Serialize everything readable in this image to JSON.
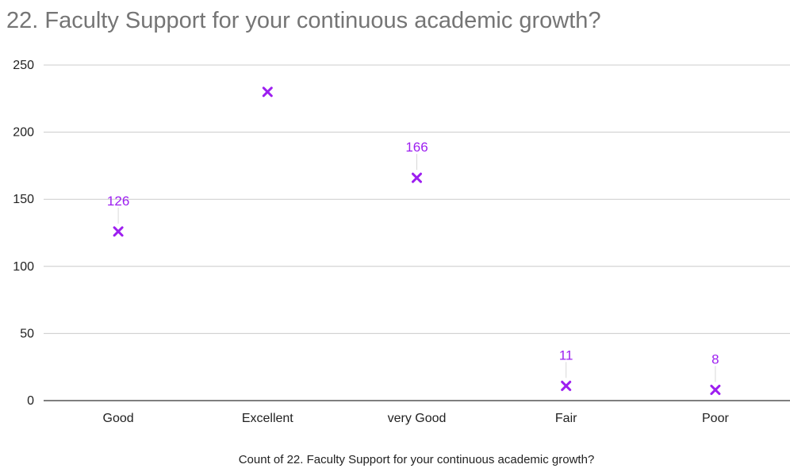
{
  "chart_data": {
    "type": "scatter",
    "title": "22. Faculty Support for your continuous academic growth?",
    "xlabel": "Count of 22. Faculty Support for your continuous academic growth?",
    "ylabel": "",
    "categories": [
      "Good",
      "Excellent",
      "very Good",
      "Fair",
      "Poor"
    ],
    "series": [
      {
        "values": [
          126,
          230,
          166,
          11,
          8
        ],
        "data_labels": [
          "126",
          "",
          "166",
          "11",
          "8"
        ],
        "color": "#9d1ff0",
        "marker": "x"
      }
    ],
    "ylim": [
      0,
      250
    ],
    "yticks": [
      "0",
      "50",
      "100",
      "150",
      "200",
      "250"
    ],
    "grid": true,
    "legend": "none"
  }
}
